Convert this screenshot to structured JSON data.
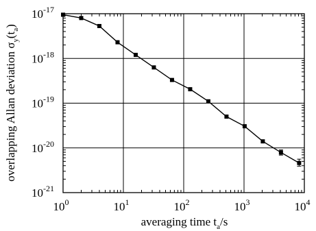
{
  "chart_data": {
    "type": "scatter",
    "xscale": "log",
    "yscale": "log",
    "xlim": [
      1,
      10000
    ],
    "ylim": [
      1e-21,
      1e-17
    ],
    "grid": true,
    "xlabel": {
      "main": "averaging time t",
      "sub": "a",
      "tail": "/s"
    },
    "ylabel": {
      "main": "overlapping Allan deviation σ",
      "sub1": "y",
      "mid": "(t",
      "sub2": "a",
      "tail": ")"
    },
    "x_ticks": [
      {
        "value": 1,
        "base": "10",
        "exp": "0"
      },
      {
        "value": 10,
        "base": "10",
        "exp": "1"
      },
      {
        "value": 100,
        "base": "10",
        "exp": "2"
      },
      {
        "value": 1000,
        "base": "10",
        "exp": "3"
      },
      {
        "value": 10000,
        "base": "10",
        "exp": "4"
      }
    ],
    "y_ticks": [
      {
        "value": 1e-21,
        "base": "10",
        "exp": "-21"
      },
      {
        "value": 1e-20,
        "base": "10",
        "exp": "-20"
      },
      {
        "value": 1e-19,
        "base": "10",
        "exp": "-19"
      },
      {
        "value": 1e-18,
        "base": "10",
        "exp": "-18"
      },
      {
        "value": 1e-17,
        "base": "10",
        "exp": "-17"
      }
    ],
    "series": [
      {
        "marker": "square",
        "color": "#000000",
        "points": [
          {
            "x": 1,
            "y": 9.5e-18
          },
          {
            "x": 2,
            "y": 8e-18
          },
          {
            "x": 4,
            "y": 5.3e-18
          },
          {
            "x": 8,
            "y": 2.3e-18
          },
          {
            "x": 16,
            "y": 1.2e-18
          },
          {
            "x": 32,
            "y": 6.3e-19
          },
          {
            "x": 64,
            "y": 3.3e-19
          },
          {
            "x": 128,
            "y": 2.05e-19
          },
          {
            "x": 256,
            "y": 1.1e-19
          },
          {
            "x": 512,
            "y": 5e-20
          },
          {
            "x": 1024,
            "y": 3.05e-20
          },
          {
            "x": 2048,
            "y": 1.4e-20
          },
          {
            "x": 4096,
            "y": 7.9e-21,
            "err": [
              6.9e-21,
              9e-21
            ]
          },
          {
            "x": 8192,
            "y": 4.6e-21,
            "err": [
              3.9e-21,
              5.6e-21
            ]
          }
        ]
      }
    ]
  }
}
